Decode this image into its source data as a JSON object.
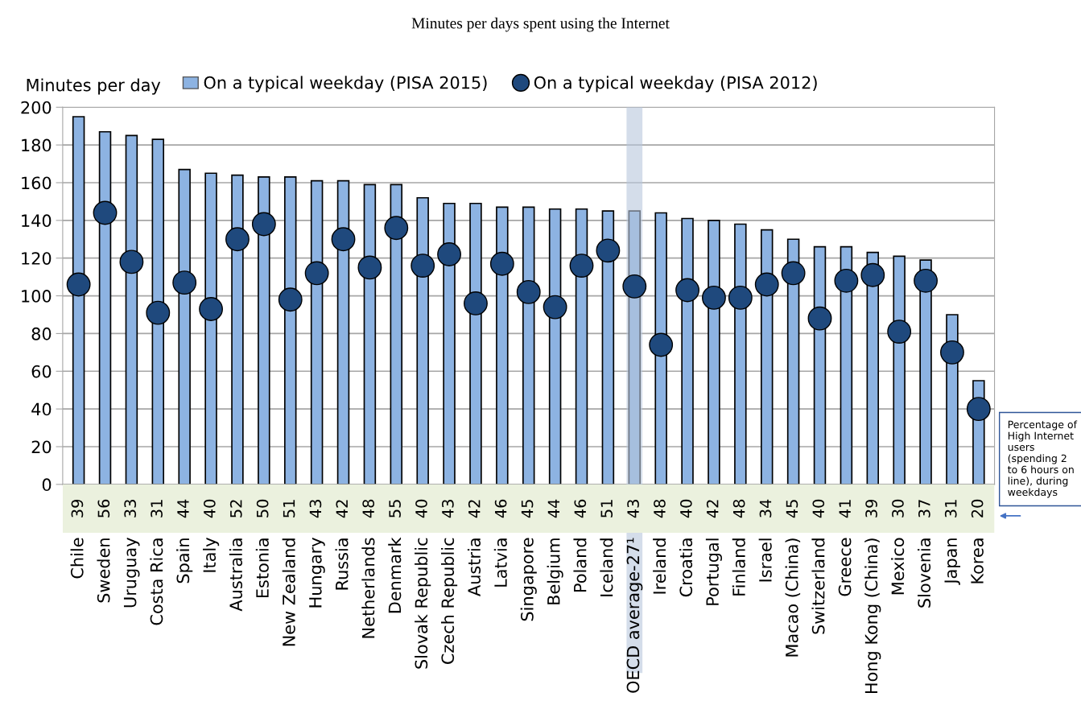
{
  "chart_data": [
    {
      "type": "bar",
      "title": "Minutes per days spent using the Internet",
      "ylabel": "Minutes per day",
      "categories": [
        "Chile",
        "Sweden",
        "Uruguay",
        "Costa Rica",
        "Spain",
        "Italy",
        "Australia",
        "Estonia",
        "New Zealand",
        "Hungary",
        "Russia",
        "Netherlands",
        "Denmark",
        "Slovak Republic",
        "Czech Republic",
        "Austria",
        "Latvia",
        "Singapore",
        "Belgium",
        "Poland",
        "Iceland",
        "OECD average-27¹",
        "Ireland",
        "Croatia",
        "Portugal",
        "Finland",
        "Israel",
        "Macao (China)",
        "Switzerland",
        "Greece",
        "Hong Kong (China)",
        "Mexico",
        "Slovenia",
        "Japan",
        "Korea"
      ],
      "series": [
        {
          "name": "On a typical weekday (PISA 2015)",
          "type": "bar",
          "color": "#8db3e2",
          "values": [
            195,
            187,
            185,
            183,
            167,
            165,
            164,
            163,
            163,
            161,
            161,
            159,
            159,
            152,
            149,
            149,
            147,
            147,
            146,
            146,
            145,
            145,
            144,
            141,
            140,
            138,
            135,
            130,
            126,
            126,
            123,
            121,
            119,
            90,
            55
          ]
        },
        {
          "name": "On a typical weekday (PISA 2012)",
          "type": "scatter",
          "color": "#1f497d",
          "values": [
            106,
            144,
            118,
            91,
            107,
            93,
            130,
            138,
            98,
            112,
            130,
            115,
            136,
            116,
            122,
            96,
            117,
            102,
            94,
            116,
            124,
            105,
            74,
            103,
            99,
            99,
            106,
            112,
            88,
            108,
            111,
            81,
            108,
            70,
            40
          ]
        }
      ],
      "bands": [
        {
          "axis": "x",
          "from": "OECD average-27¹",
          "to": "OECD average-27¹",
          "color": "#b8c7dc"
        }
      ],
      "ylim": [
        0,
        200
      ],
      "yticks": [
        0,
        20,
        40,
        60,
        80,
        100,
        120,
        140,
        160,
        180,
        200
      ],
      "grid": "y",
      "legend": "top",
      "marker": "circle"
    },
    {
      "type": "other",
      "annotations": [
        "Percentage of High Internet users (spending 2 to 6 hours on line), during weekdays"
      ],
      "values": [
        39,
        56,
        33,
        31,
        44,
        40,
        52,
        50,
        51,
        43,
        42,
        48,
        55,
        40,
        43,
        42,
        46,
        45,
        44,
        46,
        51,
        43,
        48,
        40,
        42,
        48,
        34,
        45,
        40,
        41,
        39,
        30,
        37,
        31,
        20
      ],
      "color": "#ebf1de",
      "data_labels": true
    }
  ]
}
